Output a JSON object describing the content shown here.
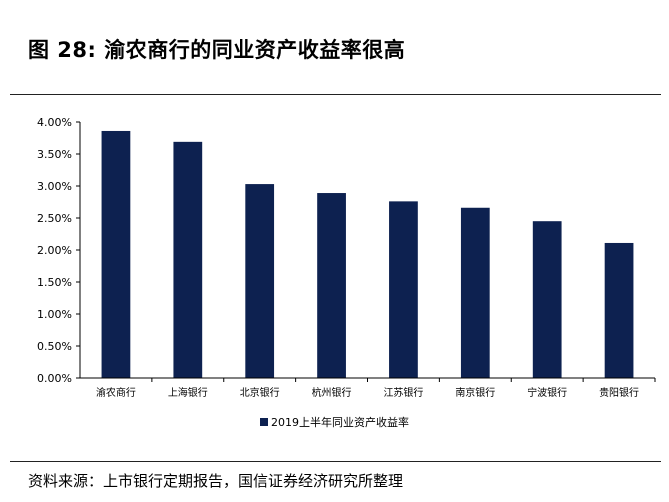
{
  "title": "图 28:  渝农商行的同业资产收益率很高",
  "source": "资料来源：上市银行定期报告，国信证券经济研究所整理",
  "chart_data": {
    "type": "bar",
    "categories": [
      "渝农商行",
      "上海银行",
      "北京银行",
      "杭州银行",
      "江苏银行",
      "南京银行",
      "宁波银行",
      "贵阳银行"
    ],
    "series": [
      {
        "name": "2019上半年同业资产收益率",
        "values": [
          3.86,
          3.69,
          3.03,
          2.89,
          2.76,
          2.66,
          2.45,
          2.11
        ]
      }
    ],
    "ylim": [
      0,
      4
    ],
    "yticks": [
      "0.00%",
      "0.50%",
      "1.00%",
      "1.50%",
      "2.00%",
      "2.50%",
      "3.00%",
      "3.50%",
      "4.00%"
    ],
    "legend_position": "bottom",
    "bar_color": "#0d2150",
    "grid": false
  }
}
